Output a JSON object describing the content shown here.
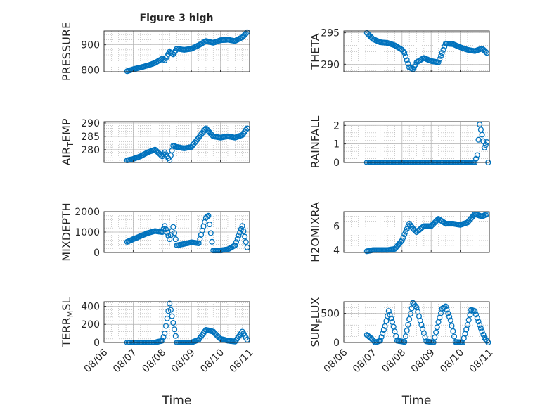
{
  "figure": {
    "title": "Figure 3 high",
    "colors": {
      "marker": "#0072BD",
      "axis": "#262626",
      "grid": "#b0b0b0",
      "background": "#ffffff"
    }
  },
  "chart_data": [
    {
      "type": "scatter",
      "title": "Figure 3 high",
      "ylabel": "PRESSURE",
      "xlabel": "",
      "ylim": [
        793,
        955
      ],
      "yticks": [
        800,
        900
      ],
      "xlim": [
        "08/06",
        "08/11"
      ],
      "grid": true,
      "x": [
        "08/06 19:00",
        "08/07 00:00",
        "08/07 06:00",
        "08/07 12:00",
        "08/07 18:00",
        "08/08 00:00",
        "08/08 02:00",
        "08/08 06:00",
        "08/08 09:00",
        "08/08 12:00",
        "08/08 18:00",
        "08/09 00:00",
        "08/09 06:00",
        "08/09 12:00",
        "08/09 18:00",
        "08/10 00:00",
        "08/10 06:00",
        "08/10 12:00",
        "08/10 18:00",
        "08/10 22:00"
      ],
      "y": [
        795,
        803,
        810,
        818,
        828,
        845,
        838,
        872,
        862,
        885,
        880,
        884,
        898,
        915,
        908,
        918,
        920,
        915,
        930,
        950
      ]
    },
    {
      "type": "scatter",
      "ylabel": "THETA",
      "xlabel": "",
      "ylim": [
        288.8,
        295.3
      ],
      "yticks": [
        290,
        295
      ],
      "xlim": [
        "08/06",
        "08/11"
      ],
      "grid": true,
      "x": [
        "08/06 19:00",
        "08/07 00:00",
        "08/07 06:00",
        "08/07 12:00",
        "08/07 18:00",
        "08/08 00:00",
        "08/08 02:00",
        "08/08 06:00",
        "08/08 09:00",
        "08/08 12:00",
        "08/08 18:00",
        "08/09 00:00",
        "08/09 06:00",
        "08/09 12:00",
        "08/09 18:00",
        "08/10 00:00",
        "08/10 06:00",
        "08/10 12:00",
        "08/10 18:00",
        "08/10 22:00"
      ],
      "y": [
        295,
        294,
        293.5,
        293.4,
        293,
        292.3,
        291.8,
        289.5,
        289.2,
        290.3,
        291,
        290.5,
        290.3,
        293.3,
        293.2,
        292.7,
        292.3,
        292.1,
        292.5,
        291.8
      ]
    },
    {
      "type": "scatter",
      "ylabel": "AIR_TEMP",
      "xlabel": "",
      "ylim": [
        275.2,
        290.5
      ],
      "yticks": [
        280,
        285,
        290
      ],
      "xlim": [
        "08/06",
        "08/11"
      ],
      "grid": true,
      "x": [
        "08/06 19:00",
        "08/07 00:00",
        "08/07 06:00",
        "08/07 12:00",
        "08/07 18:00",
        "08/08 00:00",
        "08/08 02:00",
        "08/08 06:00",
        "08/08 09:00",
        "08/08 12:00",
        "08/08 18:00",
        "08/09 00:00",
        "08/09 06:00",
        "08/09 12:00",
        "08/09 18:00",
        "08/10 00:00",
        "08/10 06:00",
        "08/10 12:00",
        "08/10 18:00",
        "08/10 22:00"
      ],
      "y": [
        276,
        276.5,
        277.5,
        279,
        280,
        277.5,
        279,
        276,
        281.5,
        281,
        280.5,
        281,
        284.5,
        288,
        285,
        284.5,
        285,
        284.5,
        285.5,
        288
      ]
    },
    {
      "type": "scatter",
      "ylabel": "RAINFALL",
      "xlabel": "",
      "ylim": [
        0,
        2.2
      ],
      "yticks": [
        0,
        1,
        2
      ],
      "xlim": [
        "08/06",
        "08/11"
      ],
      "grid": true,
      "x": [
        "08/06 19:00",
        "08/07 06:00",
        "08/07 18:00",
        "08/08 06:00",
        "08/08 18:00",
        "08/09 06:00",
        "08/09 18:00",
        "08/10 06:00",
        "08/10 12:00",
        "08/10 14:00",
        "08/10 16:00",
        "08/10 18:00",
        "08/10 20:00",
        "08/10 22:00",
        "08/10 23:00"
      ],
      "y": [
        0,
        0,
        0,
        0,
        0,
        0,
        0,
        0,
        0,
        0.4,
        2.05,
        1.5,
        0.8,
        1.1,
        0
      ]
    },
    {
      "type": "scatter",
      "ylabel": "MIXDEPTH",
      "xlabel": "",
      "ylim": [
        0,
        2000
      ],
      "yticks": [
        0,
        1000,
        2000
      ],
      "xlim": [
        "08/06",
        "08/11"
      ],
      "grid": true,
      "x": [
        "08/06 19:00",
        "08/07 00:00",
        "08/07 06:00",
        "08/07 12:00",
        "08/07 18:00",
        "08/08 00:00",
        "08/08 02:00",
        "08/08 06:00",
        "08/08 09:00",
        "08/08 12:00",
        "08/08 18:00",
        "08/09 00:00",
        "08/09 06:00",
        "08/09 12:00",
        "08/09 14:00",
        "08/09 18:00",
        "08/10 00:00",
        "08/10 06:00",
        "08/10 12:00",
        "08/10 18:00",
        "08/10 22:00"
      ],
      "y": [
        520,
        650,
        800,
        950,
        1050,
        1000,
        1300,
        650,
        1250,
        350,
        420,
        500,
        450,
        1700,
        1800,
        100,
        100,
        150,
        350,
        1300,
        250
      ]
    },
    {
      "type": "scatter",
      "ylabel": "H2OMIXRA",
      "xlabel": "",
      "ylim": [
        3.8,
        7.2
      ],
      "yticks": [
        4,
        6
      ],
      "xlim": [
        "08/06",
        "08/11"
      ],
      "grid": true,
      "x": [
        "08/06 19:00",
        "08/07 00:00",
        "08/07 06:00",
        "08/07 12:00",
        "08/07 18:00",
        "08/08 00:00",
        "08/08 02:00",
        "08/08 06:00",
        "08/08 09:00",
        "08/08 12:00",
        "08/08 18:00",
        "08/09 00:00",
        "08/09 06:00",
        "08/09 12:00",
        "08/09 18:00",
        "08/10 00:00",
        "08/10 06:00",
        "08/10 12:00",
        "08/10 18:00",
        "08/10 22:00"
      ],
      "y": [
        3.9,
        4,
        4,
        4,
        4.1,
        4.8,
        5.3,
        6.2,
        5.8,
        5.5,
        6,
        6,
        6.6,
        6.2,
        6.2,
        6.1,
        6.3,
        7.0,
        6.8,
        7.0
      ]
    },
    {
      "type": "scatter",
      "ylabel": "TERR_MSL",
      "xlabel": "Time",
      "ylim": [
        0,
        450
      ],
      "yticks": [
        0,
        200,
        400
      ],
      "xlim": [
        "08/06",
        "08/11"
      ],
      "xticks": [
        "08/06",
        "08/07",
        "08/08",
        "08/09",
        "08/10",
        "08/11"
      ],
      "grid": true,
      "x": [
        "08/06 19:00",
        "08/07 06:00",
        "08/07 18:00",
        "08/08 00:00",
        "08/08 02:00",
        "08/08 06:00",
        "08/08 08:00",
        "08/08 12:00",
        "08/08 18:00",
        "08/09 00:00",
        "08/09 06:00",
        "08/09 12:00",
        "08/09 18:00",
        "08/10 00:00",
        "08/10 06:00",
        "08/10 12:00",
        "08/10 18:00",
        "08/10 22:00"
      ],
      "y": [
        0,
        0,
        0,
        20,
        100,
        430,
        290,
        0,
        0,
        0,
        30,
        140,
        120,
        40,
        20,
        10,
        120,
        30
      ]
    },
    {
      "type": "scatter",
      "ylabel": "SUN_FLUX",
      "xlabel": "Time",
      "ylim": [
        0,
        700
      ],
      "yticks": [
        0,
        500
      ],
      "xlim": [
        "08/06",
        "08/11"
      ],
      "xticks": [
        "08/06",
        "08/07",
        "08/08",
        "08/09",
        "08/10",
        "08/11"
      ],
      "grid": true,
      "x": [
        "08/06 19:00",
        "08/06 22:00",
        "08/07 02:00",
        "08/07 06:00",
        "08/07 10:00",
        "08/07 13:00",
        "08/07 16:00",
        "08/07 20:00",
        "08/08 02:00",
        "08/08 06:00",
        "08/08 09:00",
        "08/08 12:00",
        "08/08 16:00",
        "08/08 20:00",
        "08/09 02:00",
        "08/09 06:00",
        "08/09 09:00",
        "08/09 12:00",
        "08/09 16:00",
        "08/09 20:00",
        "08/10 02:00",
        "08/10 06:00",
        "08/10 09:00",
        "08/10 12:00",
        "08/10 16:00",
        "08/10 20:00",
        "08/10 23:00"
      ],
      "y": [
        130,
        80,
        0,
        30,
        280,
        540,
        350,
        30,
        10,
        400,
        680,
        600,
        300,
        20,
        0,
        350,
        580,
        620,
        380,
        10,
        0,
        300,
        560,
        540,
        300,
        80,
        0
      ]
    }
  ]
}
